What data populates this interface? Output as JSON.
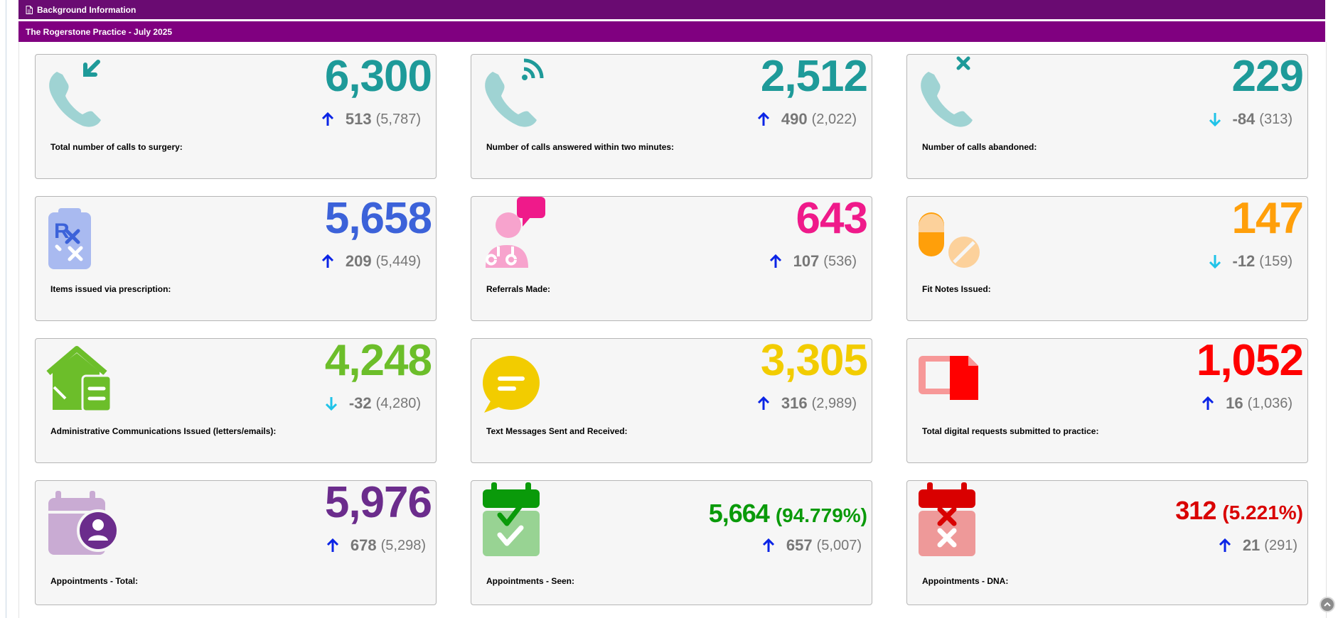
{
  "header": {
    "title": "Background Information",
    "doc_icon": "document-icon"
  },
  "subheader": {
    "title": "The Rogerstone Practice - July 2025"
  },
  "colors": {
    "header_bg": "#6a0b72",
    "subheader_bg": "#800080",
    "up_arrow": "#0b24e6",
    "down_arrow": "#1fc3e8"
  },
  "cards": [
    {
      "icon": "phone-incoming-icon",
      "value": "6,300",
      "delta": "513",
      "previous": "(5,787)",
      "direction": "up",
      "label": "Total number of calls to surgery:",
      "color": "#1e9a99"
    },
    {
      "icon": "phone-ringing-icon",
      "value": "2,512",
      "delta": "490",
      "previous": "(2,022)",
      "direction": "up",
      "label": "Number of calls answered within two minutes:",
      "color": "#1e9a99"
    },
    {
      "icon": "phone-missed-icon",
      "value": "229",
      "delta": "-84",
      "previous": "(313)",
      "direction": "down",
      "label": "Number of calls abandoned:",
      "color": "#1e9a99"
    },
    {
      "icon": "prescription-icon",
      "value": "5,658",
      "delta": "209",
      "previous": "(5,449)",
      "direction": "up",
      "label": "Items issued via prescription:",
      "color": "#3c62d9"
    },
    {
      "icon": "doctor-referral-icon",
      "value": "643",
      "delta": "107",
      "previous": "(536)",
      "direction": "up",
      "label": "Referrals Made:",
      "color": "#ef1a8a"
    },
    {
      "icon": "pills-icon",
      "value": "147",
      "delta": "-12",
      "previous": "(159)",
      "direction": "down",
      "label": "Fit Notes Issued:",
      "color": "#ff9f0a"
    },
    {
      "icon": "house-letter-icon",
      "value": "4,248",
      "delta": "-32",
      "previous": "(4,280)",
      "direction": "down",
      "label": "Administrative Communications Issued (letters/emails):",
      "color": "#6cbe2a"
    },
    {
      "icon": "chat-bubble-icon",
      "value": "3,305",
      "delta": "316",
      "previous": "(2,989)",
      "direction": "up",
      "label": "Text Messages Sent and Received:",
      "color": "#f2cc00"
    },
    {
      "icon": "digital-request-icon",
      "value": "1,052",
      "delta": "16",
      "previous": "(1,036)",
      "direction": "up",
      "label": "Total digital requests submitted to practice:",
      "color": "#ff0000"
    },
    {
      "icon": "calendar-person-icon",
      "value": "5,976",
      "percent": "",
      "delta": "678",
      "previous": "(5,298)",
      "direction": "up",
      "label": "Appointments - Total:",
      "color": "#6b2c8c"
    },
    {
      "icon": "calendar-check-icon",
      "value": "5,664",
      "percent": "(94.779%)",
      "delta": "657",
      "previous": "(5,007)",
      "direction": "up",
      "label": "Appointments - Seen:",
      "color": "#0a9a0a"
    },
    {
      "icon": "calendar-cross-icon",
      "value": "312",
      "percent": "(5.221%)",
      "delta": "21",
      "previous": "(291)",
      "direction": "up",
      "label": "Appointments - DNA:",
      "color": "#d90000"
    }
  ]
}
